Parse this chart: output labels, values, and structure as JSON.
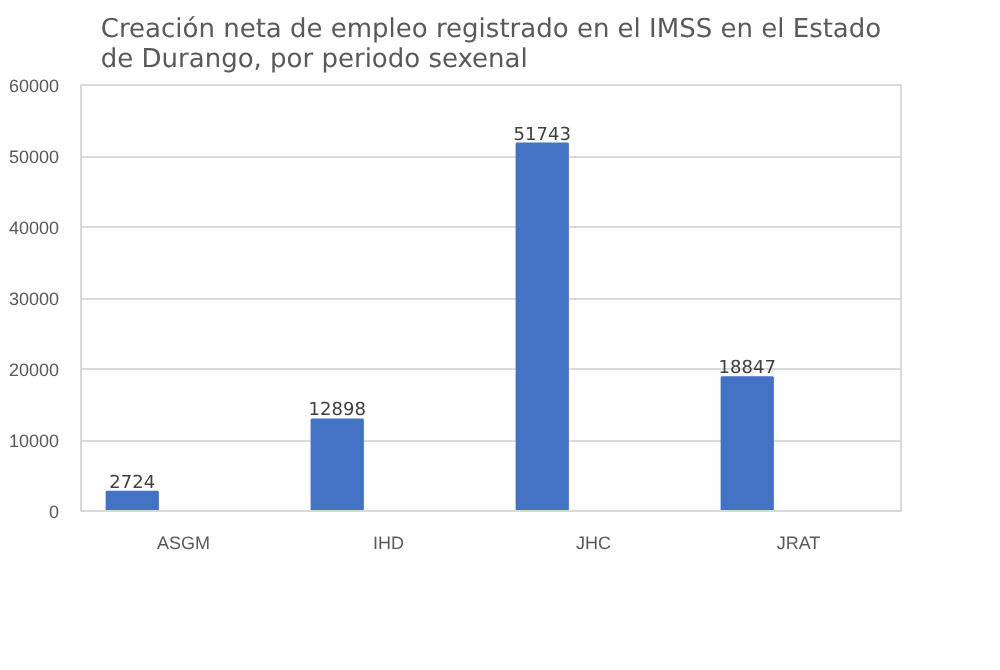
{
  "chart_data": {
    "type": "bar",
    "title": "Creación neta de empleo registrado en el IMSS en el Estado\nde Durango, por periodo sexenal",
    "categories": [
      "ASGM",
      "IHD",
      "JHC",
      "JRAT"
    ],
    "values": [
      2724,
      12898,
      51743,
      18847
    ],
    "color": "#4472c4",
    "ylim": [
      0,
      60000
    ],
    "yticks": [
      0,
      10000,
      20000,
      30000,
      40000,
      50000,
      60000
    ],
    "grid": "y",
    "data_labels": true
  }
}
